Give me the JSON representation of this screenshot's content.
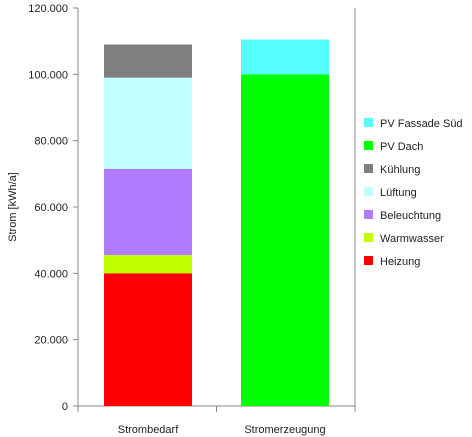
{
  "chart_data": {
    "type": "bar",
    "stacked": true,
    "ylabel": "Strom [kWh/a]",
    "ylim": [
      0,
      120000
    ],
    "yticks": [
      0,
      20000,
      40000,
      60000,
      80000,
      100000,
      120000
    ],
    "ytick_labels": [
      "0",
      "20.000",
      "40.000",
      "60.000",
      "80.000",
      "100.000",
      "120.000"
    ],
    "categories": [
      "Strombedarf",
      "Stromerzeugung"
    ],
    "series": [
      {
        "name": "Heizung",
        "color": "#ff0000",
        "values": [
          40000,
          0
        ]
      },
      {
        "name": "Warmwasser",
        "color": "#bfff00",
        "values": [
          5500,
          0
        ]
      },
      {
        "name": "Beleuchtung",
        "color": "#b07cff",
        "values": [
          26000,
          0
        ]
      },
      {
        "name": "Lüftung",
        "color": "#bfffff",
        "values": [
          27500,
          0
        ]
      },
      {
        "name": "Kühlung",
        "color": "#7f7f7f",
        "values": [
          10000,
          0
        ]
      },
      {
        "name": "PV Dach",
        "color": "#00ff00",
        "values": [
          0,
          100000
        ]
      },
      {
        "name": "PV Fassade Süd",
        "color": "#55ffff",
        "values": [
          0,
          10500
        ]
      }
    ],
    "legend_position": "right",
    "grid": false
  }
}
